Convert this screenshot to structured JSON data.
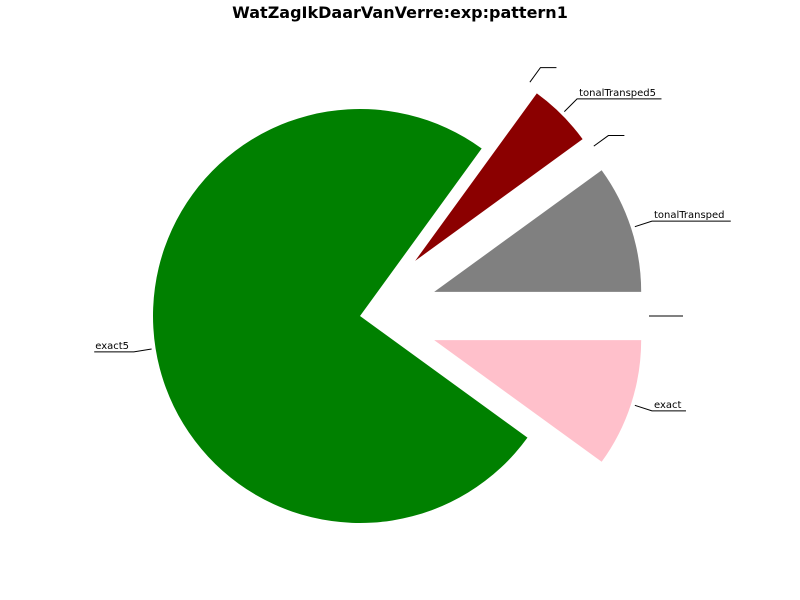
{
  "chart_data": {
    "type": "pie",
    "title": "WatZagIkDaarVanVerre:exp:pattern1",
    "start_angle_deg": 0,
    "direction": "counterclockwise",
    "slices": [
      {
        "label": "",
        "value": 0,
        "color": "#000000",
        "exploded": true
      },
      {
        "label": "tonalTransped",
        "value": 10,
        "color": "#808080",
        "exploded": true
      },
      {
        "label": "",
        "value": 0,
        "color": "#000000",
        "exploded": true
      },
      {
        "label": "tonalTransped5",
        "value": 5,
        "color": "#8b0000",
        "exploded": true
      },
      {
        "label": "",
        "value": 0,
        "color": "#000000",
        "exploded": true
      },
      {
        "label": "exact5",
        "value": 75,
        "color": "#008000",
        "exploded": false
      },
      {
        "label": "exact",
        "value": 10,
        "color": "#ffc0cb",
        "exploded": true
      }
    ]
  }
}
